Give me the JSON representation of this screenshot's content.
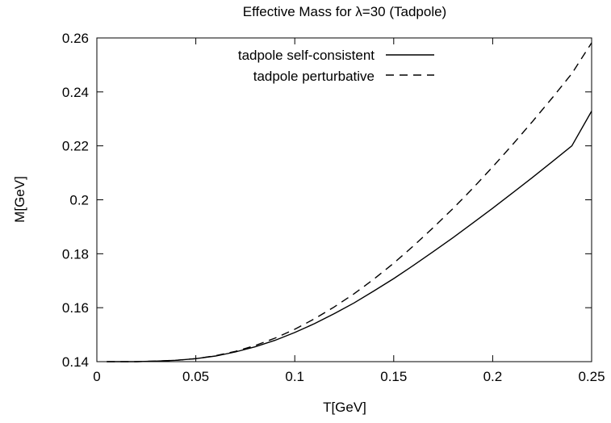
{
  "chart_data": {
    "type": "line",
    "title": "Effective Mass for λ=30 (Tadpole)",
    "xlabel": "T[GeV]",
    "ylabel": "M[GeV]",
    "xlim": [
      0,
      0.25
    ],
    "ylim": [
      0.14,
      0.26
    ],
    "xticks": [
      0,
      0.05,
      0.1,
      0.15,
      0.2,
      0.25
    ],
    "xtick_labels": [
      "0",
      "0.05",
      "0.1",
      "0.15",
      "0.2",
      "0.25"
    ],
    "yticks": [
      0.14,
      0.16,
      0.18,
      0.2,
      0.22,
      0.24,
      0.26
    ],
    "ytick_labels": [
      "0.14",
      "0.16",
      "0.18",
      "0.2",
      "0.22",
      "0.24",
      "0.26"
    ],
    "grid": false,
    "legend_position": "top-center",
    "series": [
      {
        "name": "tadpole self-consistent",
        "style": "solid",
        "x": [
          0.005,
          0.02,
          0.03,
          0.04,
          0.05,
          0.06,
          0.07,
          0.08,
          0.09,
          0.1,
          0.11,
          0.12,
          0.13,
          0.14,
          0.15,
          0.16,
          0.17,
          0.18,
          0.19,
          0.2,
          0.21,
          0.22,
          0.23,
          0.24,
          0.25
        ],
        "y": [
          0.14,
          0.14,
          0.1402,
          0.1405,
          0.1411,
          0.1421,
          0.1436,
          0.1455,
          0.1479,
          0.1508,
          0.1541,
          0.1578,
          0.1618,
          0.1662,
          0.1708,
          0.1757,
          0.1808,
          0.186,
          0.1914,
          0.1969,
          0.2025,
          0.2082,
          0.2141,
          0.22,
          0.2329
        ]
      },
      {
        "name": "tadpole perturbative",
        "style": "dashed",
        "x": [
          0.005,
          0.02,
          0.03,
          0.04,
          0.05,
          0.06,
          0.07,
          0.08,
          0.09,
          0.1,
          0.11,
          0.12,
          0.13,
          0.14,
          0.15,
          0.16,
          0.17,
          0.18,
          0.19,
          0.2,
          0.21,
          0.22,
          0.23,
          0.24,
          0.25
        ],
        "y": [
          0.14,
          0.14,
          0.1402,
          0.1405,
          0.1411,
          0.1422,
          0.1438,
          0.146,
          0.1487,
          0.152,
          0.1559,
          0.1603,
          0.1652,
          0.1706,
          0.1765,
          0.1829,
          0.1897,
          0.1968,
          0.2043,
          0.2122,
          0.2204,
          0.2289,
          0.2377,
          0.2468,
          0.2582
        ]
      }
    ]
  }
}
